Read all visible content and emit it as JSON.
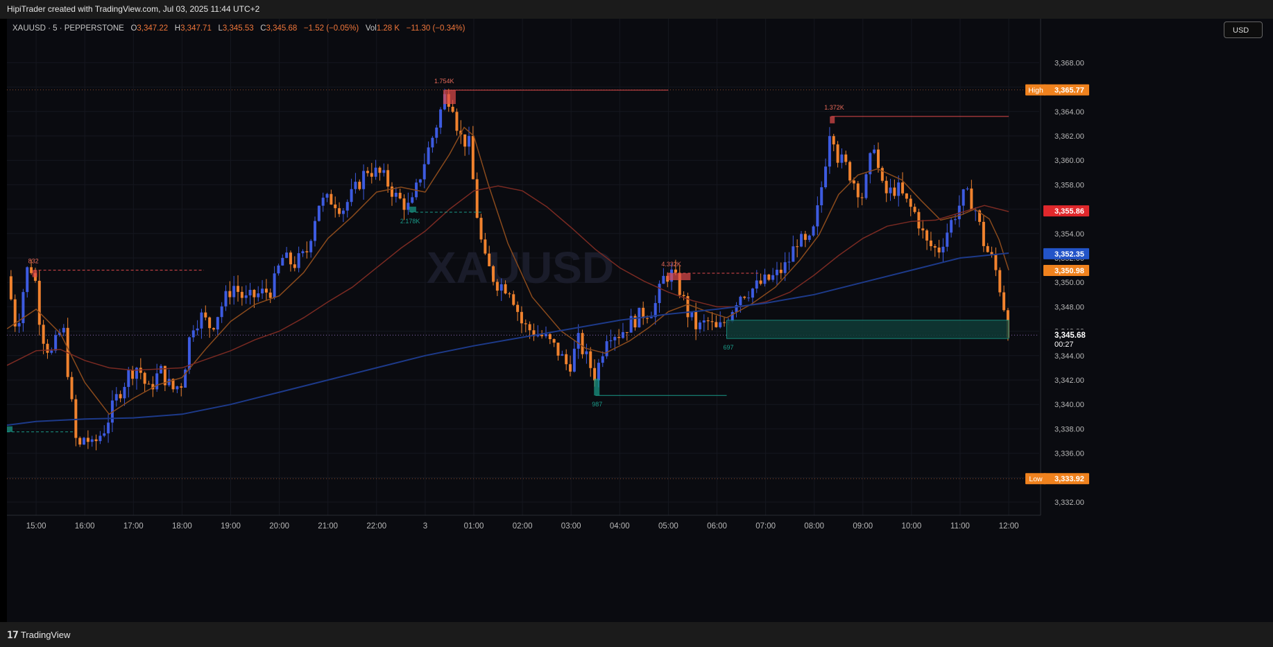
{
  "header": {
    "title": "HipiTrader created with TradingView.com, Jul 03, 2025 11:44 UTC+2"
  },
  "legend": {
    "symbol": "XAUUSD · 5 · PEPPERSTONE",
    "o_label": "O",
    "o": "3,347.22",
    "h_label": "H",
    "h": "3,347.71",
    "l_label": "L",
    "l": "3,345.53",
    "c_label": "C",
    "c": "3,345.68",
    "change": "−1.52 (−0.05%)",
    "vol_label": "Vol",
    "vol": "1.28 K",
    "vol_change": "−11.30 (−0.34%)"
  },
  "watermark": "XAUUSD",
  "currency": "USD",
  "footer": {
    "brand": "TradingView"
  },
  "colors": {
    "background": "#0a0b10",
    "bull": "#3d5be0",
    "bear": "#f0822e",
    "supply": "#e14b4b",
    "demand": "#1a9c8a",
    "ema_fast": "#8a4a1c",
    "ema_mid": "#7a2a22",
    "ema_slow": "#1d3a8a"
  },
  "chart_data": {
    "type": "candlestick",
    "symbol": "XAUUSD",
    "interval": "5",
    "y_axis": {
      "range": [
        3331.0,
        3370.0
      ],
      "ticks": [
        "3,332.00",
        "3,334.00",
        "3,336.00",
        "3,338.00",
        "3,340.00",
        "3,342.00",
        "3,344.00",
        "3,346.00",
        "3,348.00",
        "3,350.00",
        "3,352.00",
        "3,354.00",
        "3,356.00",
        "3,358.00",
        "3,360.00",
        "3,362.00",
        "3,364.00",
        "3,366.00",
        "3,368.00"
      ]
    },
    "x_axis": {
      "ticks": [
        {
          "label": "15:00",
          "h": -9.0
        },
        {
          "label": "16:00",
          "h": -8.0
        },
        {
          "label": "17:00",
          "h": -7.0
        },
        {
          "label": "18:00",
          "h": -6.0
        },
        {
          "label": "19:00",
          "h": -5.0
        },
        {
          "label": "20:00",
          "h": -4.0
        },
        {
          "label": "21:00",
          "h": -3.0
        },
        {
          "label": "22:00",
          "h": -2.0
        },
        {
          "label": "3",
          "h": -1.0
        },
        {
          "label": "01:00",
          "h": 0.0
        },
        {
          "label": "02:00",
          "h": 1.0
        },
        {
          "label": "03:00",
          "h": 2.0
        },
        {
          "label": "04:00",
          "h": 3.0
        },
        {
          "label": "05:00",
          "h": 4.0
        },
        {
          "label": "06:00",
          "h": 5.0
        },
        {
          "label": "07:00",
          "h": 6.0
        },
        {
          "label": "08:00",
          "h": 7.0
        },
        {
          "label": "09:00",
          "h": 8.0
        },
        {
          "label": "10:00",
          "h": 9.0
        },
        {
          "label": "11:00",
          "h": 10.0
        },
        {
          "label": "12:00",
          "h": 11.0
        }
      ]
    },
    "price_path": [
      [
        -9.6,
        3350.5
      ],
      [
        -9.4,
        3346.0
      ],
      [
        -9.2,
        3351.0
      ],
      [
        -9.05,
        3351.2
      ],
      [
        -8.9,
        3346.0
      ],
      [
        -8.7,
        3344.0
      ],
      [
        -8.45,
        3346.5
      ],
      [
        -8.3,
        3341.0
      ],
      [
        -8.15,
        3336.0
      ],
      [
        -8.0,
        3337.5
      ],
      [
        -7.85,
        3336.5
      ],
      [
        -7.6,
        3338.0
      ],
      [
        -7.35,
        3340.5
      ],
      [
        -7.1,
        3342.5
      ],
      [
        -6.9,
        3343.2
      ],
      [
        -6.7,
        3341.0
      ],
      [
        -6.45,
        3342.8
      ],
      [
        -6.2,
        3341.2
      ],
      [
        -6.0,
        3341.8
      ],
      [
        -5.8,
        3346.5
      ],
      [
        -5.6,
        3347.2
      ],
      [
        -5.4,
        3346.3
      ],
      [
        -5.2,
        3348.0
      ],
      [
        -4.95,
        3349.8
      ],
      [
        -4.7,
        3348.5
      ],
      [
        -4.45,
        3349.0
      ],
      [
        -4.15,
        3349.4
      ],
      [
        -3.95,
        3352.0
      ],
      [
        -3.7,
        3351.5
      ],
      [
        -3.45,
        3352.3
      ],
      [
        -3.2,
        3356.5
      ],
      [
        -2.9,
        3356.8
      ],
      [
        -2.7,
        3356.0
      ],
      [
        -2.45,
        3357.5
      ],
      [
        -2.2,
        3359.3
      ],
      [
        -1.9,
        3358.8
      ],
      [
        -1.8,
        3358.3
      ],
      [
        -1.6,
        3357.0
      ],
      [
        -1.3,
        3356.0
      ],
      [
        -1.05,
        3359.5
      ],
      [
        -0.8,
        3362.5
      ],
      [
        -0.6,
        3365.2
      ],
      [
        -0.45,
        3365.0
      ],
      [
        -0.3,
        3362.0
      ],
      [
        -0.1,
        3361.3
      ],
      [
        0.05,
        3356.0
      ],
      [
        0.2,
        3352.0
      ],
      [
        0.45,
        3350.0
      ],
      [
        0.75,
        3349.5
      ],
      [
        1.0,
        3346.5
      ],
      [
        1.2,
        3346.0
      ],
      [
        1.45,
        3345.5
      ],
      [
        1.7,
        3344.5
      ],
      [
        1.95,
        3343.0
      ],
      [
        2.15,
        3345.2
      ],
      [
        2.35,
        3343.5
      ],
      [
        2.5,
        3342.3
      ],
      [
        2.75,
        3346.0
      ],
      [
        3.0,
        3345.8
      ],
      [
        3.25,
        3346.8
      ],
      [
        3.5,
        3347.5
      ],
      [
        3.7,
        3347.8
      ],
      [
        3.9,
        3350.3
      ],
      [
        4.05,
        3350.8
      ],
      [
        4.2,
        3349.8
      ],
      [
        4.4,
        3347.5
      ],
      [
        4.6,
        3346.2
      ],
      [
        4.8,
        3346.8
      ],
      [
        5.0,
        3346.0
      ],
      [
        5.2,
        3347.0
      ],
      [
        5.45,
        3349.0
      ],
      [
        5.7,
        3349.4
      ],
      [
        5.95,
        3350.0
      ],
      [
        6.2,
        3350.5
      ],
      [
        6.45,
        3351.5
      ],
      [
        6.65,
        3353.5
      ],
      [
        6.85,
        3353.0
      ],
      [
        6.95,
        3353.5
      ],
      [
        7.1,
        3356.5
      ],
      [
        7.25,
        3360.5
      ],
      [
        7.35,
        3363.5
      ],
      [
        7.45,
        3360.5
      ],
      [
        7.65,
        3359.5
      ],
      [
        7.85,
        3358.0
      ],
      [
        8.0,
        3357.0
      ],
      [
        8.1,
        3359.0
      ],
      [
        8.25,
        3361.8
      ],
      [
        8.35,
        3358.0
      ],
      [
        8.5,
        3357.2
      ],
      [
        8.7,
        3357.8
      ],
      [
        8.9,
        3356.5
      ],
      [
        9.1,
        3355.5
      ],
      [
        9.3,
        3353.2
      ],
      [
        9.55,
        3352.6
      ],
      [
        9.8,
        3354.8
      ],
      [
        10.1,
        3357.3
      ],
      [
        10.3,
        3356.2
      ],
      [
        10.5,
        3353.0
      ],
      [
        10.7,
        3351.5
      ],
      [
        10.85,
        3349.0
      ],
      [
        10.93,
        3347.5
      ],
      [
        11.0,
        3345.7
      ]
    ],
    "series": [
      {
        "name": "EMA fast",
        "points": [
          [
            -9.6,
            3346.2
          ],
          [
            -9.0,
            3347.8
          ],
          [
            -8.5,
            3345.8
          ],
          [
            -8.0,
            3341.8
          ],
          [
            -7.5,
            3339.2
          ],
          [
            -7.0,
            3340.5
          ],
          [
            -6.5,
            3341.6
          ],
          [
            -6.0,
            3342.2
          ],
          [
            -5.5,
            3344.6
          ],
          [
            -5.0,
            3346.8
          ],
          [
            -4.5,
            3348.2
          ],
          [
            -4.0,
            3348.9
          ],
          [
            -3.5,
            3350.8
          ],
          [
            -3.0,
            3353.6
          ],
          [
            -2.5,
            3355.4
          ],
          [
            -2.0,
            3357.4
          ],
          [
            -1.5,
            3357.8
          ],
          [
            -1.0,
            3357.4
          ],
          [
            -0.5,
            3360.5
          ],
          [
            -0.2,
            3362.7
          ],
          [
            0.0,
            3362.0
          ],
          [
            0.3,
            3358.0
          ],
          [
            0.7,
            3353.2
          ],
          [
            1.2,
            3348.8
          ],
          [
            1.8,
            3346.0
          ],
          [
            2.3,
            3344.6
          ],
          [
            2.7,
            3344.2
          ],
          [
            3.2,
            3345.2
          ],
          [
            3.6,
            3346.3
          ],
          [
            4.0,
            3347.6
          ],
          [
            4.4,
            3348.2
          ],
          [
            4.8,
            3347.6
          ],
          [
            5.2,
            3347.1
          ],
          [
            5.7,
            3348.2
          ],
          [
            6.2,
            3349.6
          ],
          [
            6.7,
            3351.8
          ],
          [
            7.1,
            3353.9
          ],
          [
            7.5,
            3357.2
          ],
          [
            7.9,
            3358.8
          ],
          [
            8.3,
            3359.3
          ],
          [
            8.8,
            3358.4
          ],
          [
            9.2,
            3356.7
          ],
          [
            9.6,
            3355.1
          ],
          [
            10.0,
            3355.5
          ],
          [
            10.3,
            3356.0
          ],
          [
            10.6,
            3355.2
          ],
          [
            10.8,
            3353.5
          ],
          [
            11.0,
            3351.0
          ]
        ]
      },
      {
        "name": "EMA mid",
        "points": [
          [
            -9.6,
            3343.2
          ],
          [
            -9.0,
            3344.4
          ],
          [
            -8.5,
            3344.5
          ],
          [
            -8.0,
            3343.6
          ],
          [
            -7.5,
            3343.0
          ],
          [
            -7.0,
            3342.8
          ],
          [
            -6.5,
            3342.9
          ],
          [
            -6.0,
            3343.0
          ],
          [
            -5.5,
            3343.7
          ],
          [
            -5.0,
            3344.4
          ],
          [
            -4.5,
            3345.3
          ],
          [
            -4.0,
            3346.0
          ],
          [
            -3.5,
            3347.1
          ],
          [
            -3.0,
            3348.4
          ],
          [
            -2.5,
            3349.6
          ],
          [
            -2.0,
            3351.2
          ],
          [
            -1.5,
            3352.8
          ],
          [
            -1.0,
            3354.2
          ],
          [
            -0.5,
            3356.0
          ],
          [
            0.0,
            3357.5
          ],
          [
            0.5,
            3357.9
          ],
          [
            1.0,
            3357.5
          ],
          [
            1.5,
            3356.2
          ],
          [
            2.0,
            3354.5
          ],
          [
            2.5,
            3352.7
          ],
          [
            3.0,
            3351.2
          ],
          [
            3.5,
            3350.1
          ],
          [
            4.0,
            3349.2
          ],
          [
            4.5,
            3348.5
          ],
          [
            5.0,
            3348.0
          ],
          [
            5.5,
            3348.0
          ],
          [
            6.0,
            3348.4
          ],
          [
            6.5,
            3349.2
          ],
          [
            7.0,
            3350.6
          ],
          [
            7.5,
            3352.2
          ],
          [
            8.0,
            3353.6
          ],
          [
            8.5,
            3354.6
          ],
          [
            9.0,
            3355.0
          ],
          [
            9.5,
            3355.1
          ],
          [
            10.0,
            3355.7
          ],
          [
            10.5,
            3356.3
          ],
          [
            11.0,
            3355.8
          ]
        ]
      },
      {
        "name": "EMA slow",
        "points": [
          [
            -9.6,
            3338.3
          ],
          [
            -9.0,
            3338.6
          ],
          [
            -8.0,
            3338.8
          ],
          [
            -7.0,
            3338.9
          ],
          [
            -6.0,
            3339.2
          ],
          [
            -5.0,
            3340.0
          ],
          [
            -4.0,
            3341.0
          ],
          [
            -3.0,
            3342.0
          ],
          [
            -2.0,
            3343.0
          ],
          [
            -1.0,
            3344.0
          ],
          [
            0.0,
            3344.8
          ],
          [
            1.0,
            3345.5
          ],
          [
            2.0,
            3346.2
          ],
          [
            3.0,
            3346.9
          ],
          [
            4.0,
            3347.4
          ],
          [
            5.0,
            3347.8
          ],
          [
            6.0,
            3348.3
          ],
          [
            7.0,
            3349.0
          ],
          [
            8.0,
            3350.0
          ],
          [
            9.0,
            3351.0
          ],
          [
            10.0,
            3352.0
          ],
          [
            11.0,
            3352.4
          ]
        ]
      }
    ],
    "horizontal_levels": [
      {
        "name": "High",
        "value": 3365.77,
        "label": "3,365.77"
      },
      {
        "name": "Low",
        "value": 3333.92,
        "label": "3,333.92"
      },
      {
        "name": "last",
        "value": 3345.68,
        "label": "3,345.68"
      }
    ],
    "price_labels": [
      {
        "name": "High",
        "value": 3365.77,
        "label": "3,365.77",
        "kind": "orange",
        "tag": "High"
      },
      {
        "name": "red",
        "value": 3355.86,
        "label": "3,355.86",
        "kind": "red"
      },
      {
        "name": "blue",
        "value": 3352.35,
        "label": "3,352.35",
        "kind": "blue"
      },
      {
        "name": "orange",
        "value": 3350.98,
        "label": "3,350.98",
        "kind": "orange"
      },
      {
        "name": "last",
        "value": 3345.68,
        "label": "3,345.68",
        "kind": "last",
        "countdown": "00:27"
      },
      {
        "name": "Low",
        "value": 3333.92,
        "label": "3,333.92",
        "kind": "orange",
        "tag": "Low"
      }
    ],
    "supply_zones": [
      {
        "label": "832",
        "h_start": -9.05,
        "value": 3351.0,
        "h_end": -5.55,
        "dashed": true
      },
      {
        "label": "1.754K",
        "h_start": -0.6,
        "value": 3365.75,
        "h_end": 4.0,
        "dashed": false
      },
      {
        "label": "4.332K",
        "h_start": 4.0,
        "value": 3350.75,
        "h_end": 5.85,
        "dashed": true
      },
      {
        "label": "1.372K",
        "h_start": 7.35,
        "value": 3363.6,
        "h_end": 11.0,
        "dashed": false
      }
    ],
    "demand_zones": [
      {
        "label": "",
        "h_start": -9.6,
        "value": 3337.75,
        "h_end": -8.2,
        "dashed": true
      },
      {
        "label": "2.178K",
        "h_start": -1.3,
        "value": 3355.75,
        "h_end": 0.2,
        "dashed": true
      },
      {
        "label": "987",
        "h_start": 2.5,
        "value": 3342.1,
        "h_end": 5.2,
        "dashed": false
      },
      {
        "label": "697",
        "h_start": 5.2,
        "value": 3346.9,
        "h_end": 11.0,
        "dashed": false,
        "box_top": 3346.9,
        "box_bottom": 3345.4
      }
    ]
  }
}
